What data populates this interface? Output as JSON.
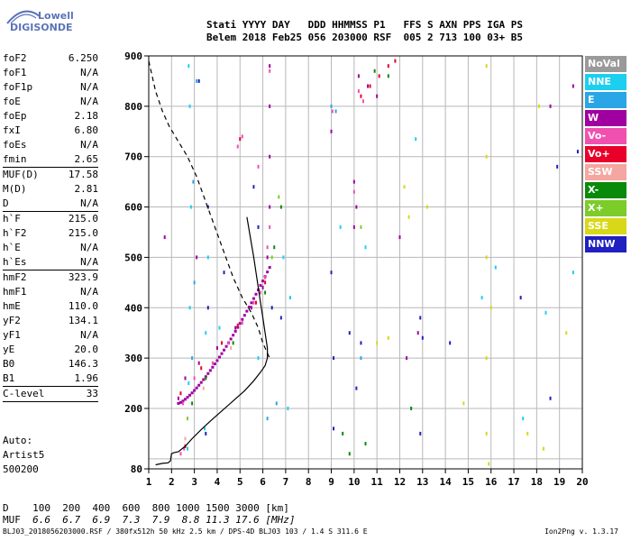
{
  "logo": {
    "line1": "Lowell",
    "line2": "DIGISONDE"
  },
  "header": {
    "line1": "Stati YYYY DAY   DDD HHMMSS P1   FFS S AXN PPS IGA PS",
    "line2": "Belem 2018 Feb25 056 203000 RSF  005 2 713 100 03+ B5"
  },
  "params": [
    {
      "label": "foF2",
      "value": "6.250"
    },
    {
      "label": "foF1",
      "value": "N/A"
    },
    {
      "label": "foF1p",
      "value": "N/A"
    },
    {
      "label": "foE",
      "value": "N/A"
    },
    {
      "label": "foEp",
      "value": "2.18"
    },
    {
      "label": "fxI",
      "value": "6.80"
    },
    {
      "label": "foEs",
      "value": "N/A"
    },
    {
      "label": "fmin",
      "value": "2.65"
    },
    {
      "sep": true
    },
    {
      "label": "MUF(D)",
      "value": "17.58"
    },
    {
      "label": "M(D)",
      "value": "2.81"
    },
    {
      "label": "D",
      "value": "N/A"
    },
    {
      "sep": true
    },
    {
      "label": "h`F",
      "value": "215.0"
    },
    {
      "label": "h`F2",
      "value": "215.0"
    },
    {
      "label": "h`E",
      "value": "N/A"
    },
    {
      "label": "h`Es",
      "value": "N/A"
    },
    {
      "sep": true
    },
    {
      "label": "hmF2",
      "value": "323.9"
    },
    {
      "label": "hmF1",
      "value": "N/A"
    },
    {
      "label": "hmE",
      "value": "110.0"
    },
    {
      "label": "yF2",
      "value": "134.1"
    },
    {
      "label": "yF1",
      "value": "N/A"
    },
    {
      "label": "yE",
      "value": "20.0"
    },
    {
      "label": "B0",
      "value": "146.3"
    },
    {
      "label": "B1",
      "value": "1.96"
    },
    {
      "sep": true
    },
    {
      "label": "C-level",
      "value": "33"
    },
    {
      "sep": true
    }
  ],
  "artist": {
    "line1": "Auto:",
    "line2": "Artist5",
    "line3": "500200"
  },
  "dmuf": {
    "d_label": "D",
    "d_values": "100  200  400  600  800 1000 1500 3000 [km]",
    "muf_label": "MUF",
    "muf_values": "6.6  6.7  6.9  7.3  7.9  8.8 11.3 17.6 [MHz]"
  },
  "footer": "BLJ03_2018056203000.RSF / 380fx512h 50 kHz 2.5 km / DPS-4D BLJ03 103 / 1.4 S 311.6 E",
  "version": "Ion2Png v. 1.3.17",
  "legend": [
    {
      "label": "NoVal",
      "color": "#9a9a9a"
    },
    {
      "label": "NNE",
      "color": "#1ccff0"
    },
    {
      "label": "E",
      "color": "#2aa6e6"
    },
    {
      "label": "W",
      "color": "#a000a0"
    },
    {
      "label": "Vo-",
      "color": "#f050b0"
    },
    {
      "label": "Vo+",
      "color": "#e8002a"
    },
    {
      "label": "SSW",
      "color": "#f4a6a0"
    },
    {
      "label": "X-",
      "color": "#0a8a0a"
    },
    {
      "label": "X+",
      "color": "#7ccc2a"
    },
    {
      "label": "SSE",
      "color": "#d8d818"
    },
    {
      "label": "NNW",
      "color": "#2020c0"
    }
  ],
  "chart_data": {
    "type": "scatter",
    "title": "",
    "xlabel": "",
    "ylabel": "",
    "xlim": [
      1,
      20
    ],
    "ylim": [
      80,
      900
    ],
    "xticks": [
      1,
      2,
      3,
      4,
      5,
      6,
      7,
      8,
      9,
      10,
      11,
      12,
      13,
      14,
      15,
      16,
      17,
      18,
      19,
      20
    ],
    "yticks": [
      80,
      100,
      200,
      300,
      400,
      500,
      600,
      700,
      800,
      900
    ],
    "ylabel_ticks": [
      80,
      200,
      300,
      400,
      500,
      600,
      700,
      800,
      900
    ],
    "grid": true,
    "series": [
      {
        "color": "#1ccff0",
        "points": [
          [
            2.7,
            120
          ],
          [
            2.75,
            250
          ],
          [
            2.8,
            400
          ],
          [
            2.85,
            600
          ],
          [
            2.8,
            800
          ],
          [
            2.75,
            880
          ],
          [
            3.45,
            160
          ],
          [
            3.5,
            350
          ],
          [
            3.6,
            500
          ],
          [
            4.1,
            360
          ],
          [
            5.8,
            300
          ],
          [
            6.9,
            500
          ],
          [
            7.1,
            200
          ],
          [
            7.2,
            420
          ],
          [
            9.4,
            560
          ],
          [
            10.5,
            520
          ],
          [
            12.7,
            735
          ],
          [
            15.6,
            420
          ],
          [
            16.2,
            480
          ],
          [
            17.4,
            180
          ],
          [
            18.4,
            390
          ],
          [
            19.6,
            470
          ]
        ]
      },
      {
        "color": "#2aa6e6",
        "points": [
          [
            2.9,
            300
          ],
          [
            3.0,
            450
          ],
          [
            2.95,
            650
          ],
          [
            3.1,
            850
          ],
          [
            9.0,
            800
          ],
          [
            9.2,
            790
          ],
          [
            6.2,
            180
          ],
          [
            6.6,
            210
          ],
          [
            10.3,
            300
          ]
        ]
      },
      {
        "color": "#a000a0",
        "points": [
          [
            2.3,
            220
          ],
          [
            2.6,
            260
          ],
          [
            3.2,
            290
          ],
          [
            4.0,
            320
          ],
          [
            4.8,
            360
          ],
          [
            5.5,
            400
          ],
          [
            6.0,
            440
          ],
          [
            6.2,
            500
          ],
          [
            6.3,
            600
          ],
          [
            6.3,
            700
          ],
          [
            6.3,
            800
          ],
          [
            6.3,
            880
          ],
          [
            10.0,
            650
          ],
          [
            10.1,
            600
          ],
          [
            10.0,
            560
          ],
          [
            10.2,
            860
          ],
          [
            10.6,
            840
          ],
          [
            11.0,
            820
          ],
          [
            12.0,
            540
          ],
          [
            12.3,
            300
          ],
          [
            12.8,
            350
          ],
          [
            1.7,
            540
          ],
          [
            3.1,
            500
          ],
          [
            9.0,
            750
          ],
          [
            18.6,
            800
          ],
          [
            19.6,
            840
          ]
        ]
      },
      {
        "color": "#f050b0",
        "points": [
          [
            2.5,
            210
          ],
          [
            3.0,
            260
          ],
          [
            3.8,
            290
          ],
          [
            4.5,
            330
          ],
          [
            5.1,
            370
          ],
          [
            5.6,
            410
          ],
          [
            5.9,
            430
          ],
          [
            6.1,
            460
          ],
          [
            6.2,
            520
          ],
          [
            6.3,
            560
          ],
          [
            4.9,
            720
          ],
          [
            5.1,
            740
          ],
          [
            10.0,
            630
          ],
          [
            10.2,
            830
          ],
          [
            10.4,
            810
          ],
          [
            2.4,
            110
          ],
          [
            2.55,
            120
          ],
          [
            6.3,
            870
          ],
          [
            9.05,
            790
          ],
          [
            5.8,
            680
          ]
        ]
      },
      {
        "color": "#e8002a",
        "points": [
          [
            2.4,
            230
          ],
          [
            3.3,
            280
          ],
          [
            4.2,
            330
          ],
          [
            4.9,
            365
          ],
          [
            5.7,
            410
          ],
          [
            6.1,
            450
          ],
          [
            10.3,
            820
          ],
          [
            10.7,
            840
          ],
          [
            11.1,
            860
          ],
          [
            11.5,
            880
          ],
          [
            11.8,
            890
          ],
          [
            2.6,
            125
          ],
          [
            5.0,
            735
          ]
        ]
      },
      {
        "color": "#f4a6a0",
        "points": [
          [
            2.6,
            140
          ],
          [
            3.4,
            240
          ],
          [
            4.6,
            320
          ]
        ]
      },
      {
        "color": "#0a8a0a",
        "points": [
          [
            2.9,
            210
          ],
          [
            3.5,
            260
          ],
          [
            4.7,
            330
          ],
          [
            6.1,
            430
          ],
          [
            6.5,
            520
          ],
          [
            6.8,
            600
          ],
          [
            9.5,
            150
          ],
          [
            10.5,
            130
          ],
          [
            10.9,
            870
          ],
          [
            11.5,
            860
          ],
          [
            12.5,
            200
          ],
          [
            9.8,
            110
          ]
        ]
      },
      {
        "color": "#7ccc2a",
        "points": [
          [
            2.7,
            180
          ],
          [
            6.4,
            500
          ],
          [
            6.7,
            620
          ],
          [
            10.3,
            560
          ]
        ]
      },
      {
        "color": "#d8d818",
        "points": [
          [
            15.8,
            880
          ],
          [
            15.8,
            700
          ],
          [
            15.8,
            500
          ],
          [
            15.8,
            300
          ],
          [
            15.8,
            150
          ],
          [
            15.9,
            90
          ],
          [
            16.0,
            400
          ],
          [
            12.4,
            580
          ],
          [
            12.2,
            640
          ],
          [
            11.0,
            330
          ],
          [
            11.5,
            340
          ],
          [
            13.2,
            600
          ],
          [
            14.8,
            210
          ],
          [
            17.6,
            150
          ],
          [
            18.1,
            800
          ],
          [
            18.3,
            120
          ],
          [
            19.3,
            350
          ]
        ]
      },
      {
        "color": "#2020c0",
        "points": [
          [
            3.2,
            850
          ],
          [
            3.6,
            600
          ],
          [
            3.6,
            400
          ],
          [
            3.5,
            150
          ],
          [
            4.3,
            470
          ],
          [
            5.6,
            640
          ],
          [
            5.8,
            560
          ],
          [
            6.4,
            400
          ],
          [
            6.8,
            380
          ],
          [
            9.0,
            470
          ],
          [
            9.1,
            300
          ],
          [
            9.1,
            160
          ],
          [
            9.8,
            350
          ],
          [
            10.1,
            240
          ],
          [
            10.3,
            330
          ],
          [
            12.9,
            380
          ],
          [
            13.0,
            340
          ],
          [
            12.9,
            150
          ],
          [
            14.2,
            330
          ],
          [
            17.3,
            420
          ],
          [
            18.6,
            220
          ],
          [
            18.9,
            680
          ],
          [
            19.8,
            710
          ]
        ]
      }
    ],
    "profile_solid": [
      [
        1.3,
        88
      ],
      [
        1.6,
        91
      ],
      [
        1.85,
        92
      ],
      [
        1.95,
        96
      ],
      [
        2.0,
        110
      ],
      [
        2.1,
        112
      ],
      [
        2.3,
        114
      ],
      [
        2.6,
        125
      ],
      [
        2.9,
        140
      ],
      [
        3.3,
        158
      ],
      [
        3.7,
        175
      ],
      [
        4.2,
        195
      ],
      [
        4.7,
        215
      ],
      [
        5.2,
        235
      ],
      [
        5.6,
        255
      ],
      [
        5.9,
        272
      ],
      [
        6.1,
        285
      ],
      [
        6.2,
        300
      ],
      [
        6.2,
        320
      ],
      [
        6.1,
        350
      ],
      [
        6.0,
        380
      ],
      [
        5.9,
        410
      ],
      [
        5.8,
        440
      ],
      [
        5.7,
        470
      ],
      [
        5.6,
        500
      ],
      [
        5.45,
        540
      ],
      [
        5.3,
        580
      ]
    ],
    "profile_dashed": [
      [
        1.0,
        890
      ],
      [
        1.3,
        830
      ],
      [
        1.6,
        790
      ],
      [
        1.9,
        760
      ],
      [
        2.3,
        730
      ],
      [
        2.7,
        700
      ],
      [
        3.1,
        660
      ],
      [
        3.5,
        610
      ],
      [
        3.9,
        560
      ],
      [
        4.3,
        510
      ],
      [
        4.7,
        460
      ],
      [
        5.1,
        420
      ],
      [
        5.5,
        390
      ],
      [
        5.8,
        360
      ],
      [
        6.0,
        330
      ],
      [
        6.2,
        310
      ],
      [
        6.3,
        300
      ]
    ],
    "trace_dense": {
      "color": "#a000a0",
      "from": [
        2.3,
        210
      ],
      "to": [
        6.3,
        480
      ]
    }
  }
}
